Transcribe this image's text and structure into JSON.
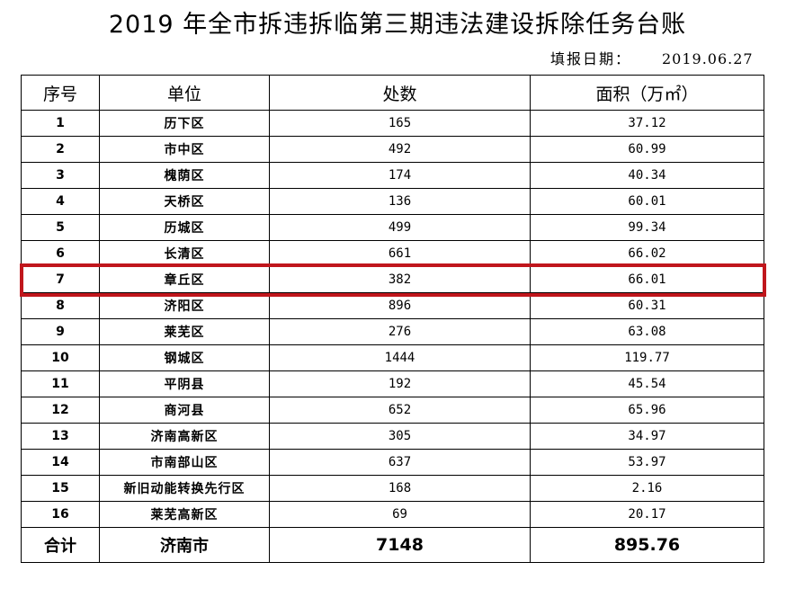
{
  "title": "2019 年全市拆违拆临第三期违法建设拆除任务台账",
  "fill_date": {
    "label": "填报日期：",
    "value": "2019.06.27"
  },
  "headers": {
    "no": "序号",
    "unit": "单位",
    "count": "处数",
    "area": "面积（万㎡）"
  },
  "rows": [
    {
      "no": "1",
      "unit": "历下区",
      "count": "165",
      "area": "37.12"
    },
    {
      "no": "2",
      "unit": "市中区",
      "count": "492",
      "area": "60.99"
    },
    {
      "no": "3",
      "unit": "槐荫区",
      "count": "174",
      "area": "40.34"
    },
    {
      "no": "4",
      "unit": "天桥区",
      "count": "136",
      "area": "60.01"
    },
    {
      "no": "5",
      "unit": "历城区",
      "count": "499",
      "area": "99.34"
    },
    {
      "no": "6",
      "unit": "长清区",
      "count": "661",
      "area": "66.02"
    },
    {
      "no": "7",
      "unit": "章丘区",
      "count": "382",
      "area": "66.01"
    },
    {
      "no": "8",
      "unit": "济阳区",
      "count": "896",
      "area": "60.31"
    },
    {
      "no": "9",
      "unit": "莱芜区",
      "count": "276",
      "area": "63.08"
    },
    {
      "no": "10",
      "unit": "钢城区",
      "count": "1444",
      "area": "119.77"
    },
    {
      "no": "11",
      "unit": "平阴县",
      "count": "192",
      "area": "45.54"
    },
    {
      "no": "12",
      "unit": "商河县",
      "count": "652",
      "area": "65.96"
    },
    {
      "no": "13",
      "unit": "济南高新区",
      "count": "305",
      "area": "34.97"
    },
    {
      "no": "14",
      "unit": "市南部山区",
      "count": "637",
      "area": "53.97"
    },
    {
      "no": "15",
      "unit": "新旧动能转换先行区",
      "count": "168",
      "area": "2.16"
    },
    {
      "no": "16",
      "unit": "莱芜高新区",
      "count": "69",
      "area": "20.17"
    }
  ],
  "total": {
    "label": "合计",
    "unit": "济南市",
    "count": "7148",
    "area": "895.76"
  },
  "highlight": {
    "row_no": "7",
    "color": "#c0161c"
  }
}
